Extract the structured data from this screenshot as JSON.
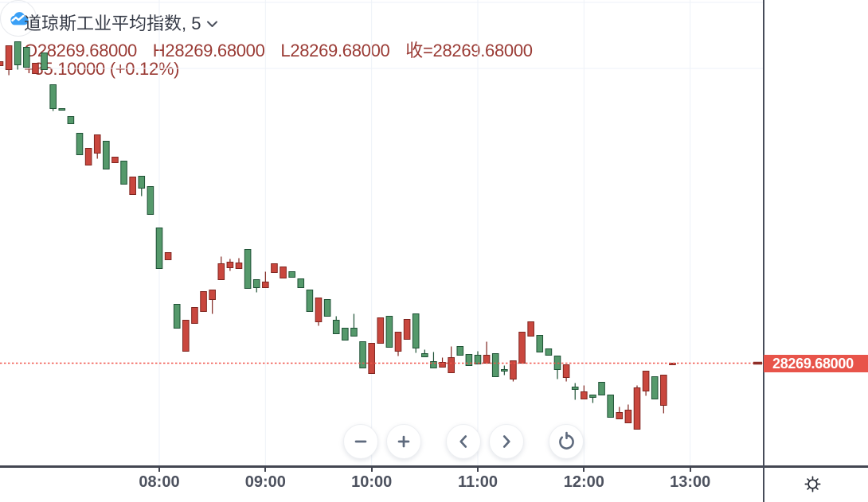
{
  "legend": {
    "title": "道琼斯工业平均指数, 5",
    "ohlc_items": [
      {
        "label": "O",
        "value": "28269.68000"
      },
      {
        "label": "H",
        "value": "28269.68000"
      },
      {
        "label": "L",
        "value": "28269.68000"
      },
      {
        "label": "收=",
        "value": "28269.68000"
      }
    ],
    "change_text": "+35.10000 (+0.12%)",
    "text_color": "#9a3b35",
    "title_color": "#363b47"
  },
  "price_axis": {
    "last_price": "28269.68000",
    "label_bg": "#e8544a",
    "label_text_color": "#ffffff"
  },
  "time_axis": {
    "labels": [
      "08:00",
      "09:00",
      "10:00",
      "11:00",
      "12:00",
      "13:00"
    ]
  },
  "toolbar": {
    "buttons": [
      {
        "name": "zoom-out",
        "icon": "minus-icon"
      },
      {
        "name": "zoom-in",
        "icon": "plus-icon"
      },
      {
        "name": "pan-left",
        "icon": "chevron-left-icon"
      },
      {
        "name": "pan-right",
        "icon": "chevron-right-icon"
      },
      {
        "name": "reset-view",
        "icon": "reset-icon"
      }
    ],
    "logo_button": "cloud-chart-logo",
    "settings_button": "settings-sun"
  },
  "colors": {
    "up_fill": "#c9473e",
    "up_stroke": "#7f251f",
    "down_fill": "#55996b",
    "down_stroke": "#1e5135",
    "grid": "#eef2f8",
    "axis": "#434651",
    "price_line": "#f0544a",
    "price_label_bg": "#e8544a",
    "logo_blue": "#3aa0f6"
  },
  "chart_data": {
    "type": "candlestick",
    "symbol": "道琼斯工业平均指数",
    "interval": "5 minutes",
    "color_convention": "red = up, green = down",
    "last_price_line": 28269.68,
    "start_time": "06:30",
    "step_minutes": 5,
    "x_tick_labels": [
      "08:00",
      "09:00",
      "10:00",
      "11:00",
      "12:00",
      "13:00"
    ],
    "ylim_estimate": [
      28210,
      28500
    ],
    "candles_ohlc": [
      [
        28475.38,
        28478.13,
        28475.38,
        28478.13
      ],
      [
        28472.63,
        28489.13,
        28468.78,
        28489.13
      ],
      [
        28491.88,
        28491.88,
        28472.63,
        28475.93
      ],
      [
        28488.03,
        28488.03,
        28474.28,
        28474.28
      ],
      [
        28469.88,
        28477.03,
        28469.88,
        28477.03
      ],
      [
        28484.18,
        28484.18,
        28472.63,
        28472.63
      ],
      [
        28462.18,
        28462.18,
        28444.03,
        28445.68
      ],
      [
        28445.68,
        28445.68,
        28444.58,
        28444.58
      ],
      [
        28440.18,
        28440.18,
        28435.23,
        28435.23
      ],
      [
        28428.63,
        28428.63,
        28413.78,
        28413.78
      ],
      [
        28406.63,
        28418.18,
        28406.63,
        28418.18
      ],
      [
        28414.88,
        28427.53,
        28411.03,
        28427.53
      ],
      [
        28423.13,
        28423.13,
        28403.88,
        28403.88
      ],
      [
        28408.28,
        28412.13,
        28408.28,
        28412.13
      ],
      [
        28409.38,
        28409.38,
        28393.43,
        28393.43
      ],
      [
        28386.28,
        28398.38,
        28386.28,
        28398.38
      ],
      [
        28398.93,
        28398.93,
        28385.18,
        28390.68
      ],
      [
        28391.78,
        28391.78,
        28372.53,
        28372.53
      ],
      [
        28363.18,
        28363.18,
        28335.13,
        28335.13
      ],
      [
        28341.18,
        28346.13,
        28341.18,
        28346.13
      ],
      [
        28310.38,
        28310.38,
        28293.88,
        28293.88
      ],
      [
        28277.93,
        28299.38,
        28277.93,
        28299.38
      ],
      [
        28297.18,
        28308.18,
        28297.18,
        28308.18
      ],
      [
        28305.43,
        28319.18,
        28305.43,
        28319.18
      ],
      [
        28313.68,
        28320.28,
        28303.78,
        28320.28
      ],
      [
        28327.43,
        28343.38,
        28327.43,
        28338.43
      ],
      [
        28335.68,
        28341.73,
        28333.48,
        28339.53
      ],
      [
        28335.13,
        28342.28,
        28335.13,
        28338.98
      ],
      [
        28348.33,
        28348.33,
        28321.38,
        28321.38
      ],
      [
        28327.43,
        28327.43,
        28318.63,
        28321.93
      ],
      [
        28321.93,
        28332.93,
        28321.93,
        28325.78
      ],
      [
        28332.38,
        28338.43,
        28332.38,
        28338.43
      ],
      [
        28328.53,
        28336.23,
        28328.53,
        28336.23
      ],
      [
        28332.93,
        28332.93,
        28329.08,
        28329.08
      ],
      [
        28327.98,
        28327.98,
        28321.93,
        28321.93
      ],
      [
        28320.28,
        28320.28,
        28305.43,
        28305.43
      ],
      [
        28298.28,
        28314.78,
        28295.53,
        28314.78
      ],
      [
        28313.68,
        28313.68,
        28302.13,
        28302.13
      ],
      [
        28299.38,
        28302.13,
        28290.03,
        28290.03
      ],
      [
        28293.88,
        28293.88,
        28285.63,
        28285.63
      ],
      [
        28293.88,
        28303.78,
        28288.38,
        28288.38
      ],
      [
        28284.53,
        28284.53,
        28266.38,
        28266.38
      ],
      [
        28262.53,
        28283.43,
        28262.53,
        28283.43
      ],
      [
        28283.43,
        28301.03,
        28283.43,
        28301.03
      ],
      [
        28302.13,
        28302.13,
        28280.68,
        28280.68
      ],
      [
        28277.93,
        28291.13,
        28274.63,
        28291.13
      ],
      [
        28286.18,
        28299.93,
        28286.18,
        28299.93
      ],
      [
        28303.78,
        28303.78,
        28276.83,
        28280.13
      ],
      [
        28276.28,
        28279.03,
        28274.08,
        28274.08
      ],
      [
        28270.78,
        28277.38,
        28266.38,
        28266.38
      ],
      [
        28266.93,
        28273.53,
        28266.93,
        28270.23
      ],
      [
        28263.08,
        28281.23,
        28263.08,
        28273.53
      ],
      [
        28281.23,
        28281.23,
        28275.18,
        28275.18
      ],
      [
        28275.73,
        28275.73,
        28268.03,
        28268.03
      ],
      [
        28275.18,
        28277.93,
        28269.13,
        28269.13
      ],
      [
        28269.68,
        28284.53,
        28269.68,
        28275.18
      ],
      [
        28276.28,
        28276.28,
        28260.33,
        28260.33
      ],
      [
        28265.28,
        28268.03,
        28261.43,
        28264.18
      ],
      [
        28258.68,
        28271.33,
        28257.03,
        28271.33
      ],
      [
        28269.68,
        28291.13,
        28269.68,
        28291.13
      ],
      [
        28288.38,
        28298.28,
        28288.38,
        28298.28
      ],
      [
        28288.93,
        28288.93,
        28277.38,
        28277.38
      ],
      [
        28279.58,
        28279.58,
        28275.18,
        28275.18
      ],
      [
        28274.63,
        28274.63,
        28258.68,
        28265.28
      ],
      [
        28259.78,
        28268.58,
        28257.03,
        28268.58
      ],
      [
        28253.18,
        28255.93,
        28244.38,
        28251.53
      ],
      [
        28244.93,
        28254.28,
        28244.93,
        28249.88
      ],
      [
        28247.68,
        28247.68,
        28242.18,
        28246.03
      ],
      [
        28256.48,
        28256.48,
        28247.68,
        28247.68
      ],
      [
        28247.68,
        28247.68,
        28232.28,
        28232.28
      ],
      [
        28231.18,
        28239.43,
        28231.18,
        28235.58
      ],
      [
        28228.43,
        28241.08,
        28228.43,
        28237.23
      ],
      [
        28224.03,
        28254.28,
        28224.03,
        28252.63
      ],
      [
        28250.43,
        28264.18,
        28247.13,
        28264.18
      ],
      [
        28260.33,
        28260.33,
        28244.93,
        28244.93
      ],
      [
        28240.53,
        28261.43,
        28235.03,
        28261.43
      ],
      [
        28269.68,
        28269.68,
        28269.68,
        28269.68
      ]
    ]
  }
}
